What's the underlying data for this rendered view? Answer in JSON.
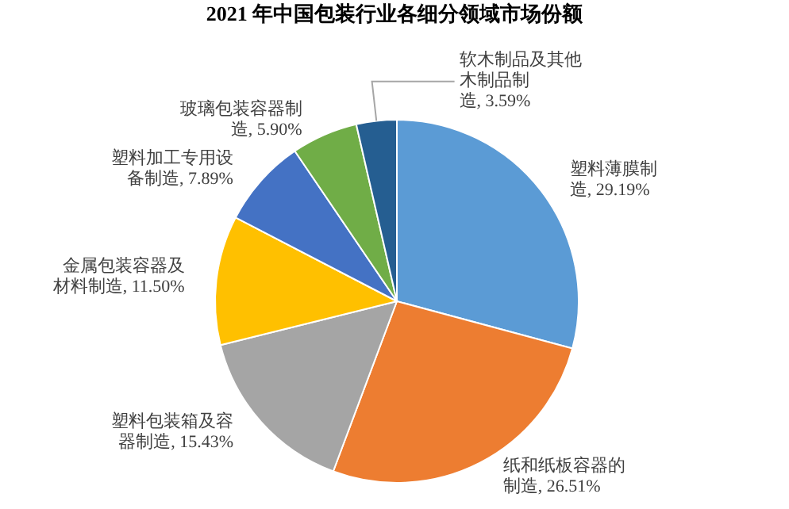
{
  "chart_data": {
    "type": "pie",
    "title": "2021 年中国包装行业各细分领域市场份额",
    "categories": [
      "塑料薄膜制造",
      "纸和纸板容器的制造",
      "塑料包装箱及容器制造",
      "金属包装容器及材料制造",
      "塑料加工专用设备制造",
      "玻璃包装容器制造",
      "软木制品及其他木制品制造"
    ],
    "values": [
      29.19,
      26.51,
      15.43,
      11.5,
      7.89,
      5.9,
      3.59
    ],
    "value_labels": [
      "29.19%",
      "26.51%",
      "15.43%",
      "11.50%",
      "7.89%",
      "5.90%",
      "3.59%"
    ],
    "colors": [
      "#5b9bd5",
      "#ed7d31",
      "#a5a5a5",
      "#ffc000",
      "#4472c4",
      "#70ad47",
      "#255e91"
    ],
    "legend": false
  }
}
